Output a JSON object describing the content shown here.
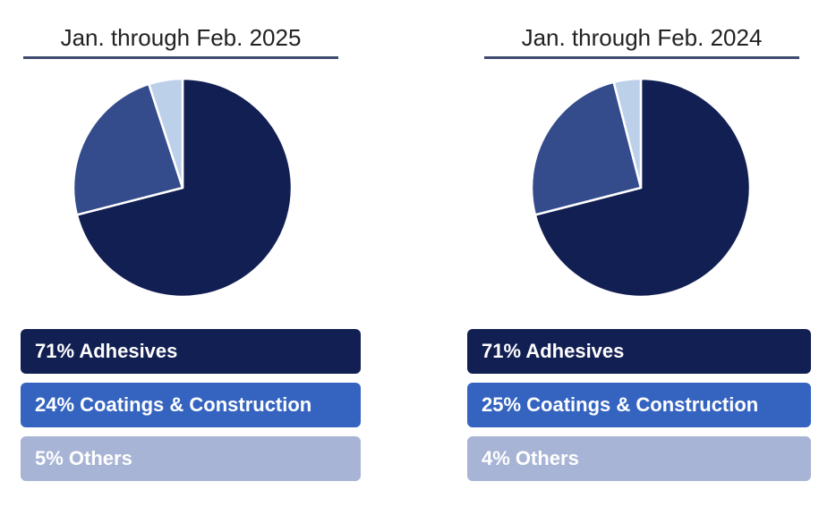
{
  "colors": {
    "adhesives": "#121f52",
    "coatings": "#344b8c",
    "coatings_legend": "#3564c0",
    "others": "#bdd0ea",
    "others_legend": "#a7b4d5",
    "title_rule": "#3d4a6e"
  },
  "chart_data": [
    {
      "type": "pie",
      "title": "Jan. through Feb. 2025",
      "categories": [
        "Adhesives",
        "Coatings & Construction",
        "Others"
      ],
      "values": [
        71,
        24,
        5
      ],
      "legend": [
        "71% Adhesives",
        "24% Coatings & Construction",
        "5% Others"
      ]
    },
    {
      "type": "pie",
      "title": "Jan. through Feb. 2024",
      "categories": [
        "Adhesives",
        "Coatings & Construction",
        "Others"
      ],
      "values": [
        71,
        25,
        4
      ],
      "legend": [
        "71% Adhesives",
        "25% Coatings & Construction",
        "4% Others"
      ]
    }
  ]
}
